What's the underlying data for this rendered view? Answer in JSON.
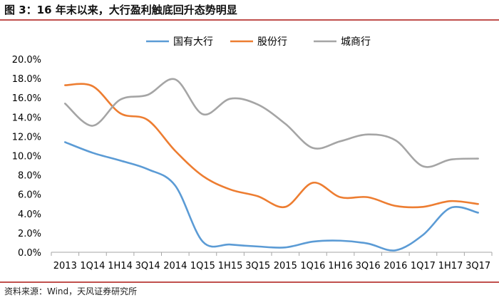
{
  "figure": {
    "title": "图 3：16 年末以来，大行盈利触底回升态势明显",
    "source": "资料来源：Wind，天风证券研究所"
  },
  "colors": {
    "rule": "#c0504d",
    "axis": "#a6a6a6"
  },
  "chart_data": {
    "type": "line",
    "title": "",
    "xlabel": "",
    "ylabel": "",
    "categories": [
      "2013",
      "1Q14",
      "1H14",
      "3Q14",
      "2014",
      "1Q15",
      "1H15",
      "3Q15",
      "2015",
      "1Q16",
      "1H16",
      "3Q16",
      "2016",
      "1Q17",
      "1H17",
      "3Q17"
    ],
    "ylim": [
      0,
      20
    ],
    "y_ticks": [
      0,
      2,
      4,
      6,
      8,
      10,
      12,
      14,
      16,
      18,
      20
    ],
    "y_tick_labels": [
      "0.0%",
      "2.0%",
      "4.0%",
      "6.0%",
      "8.0%",
      "10.0%",
      "12.0%",
      "14.0%",
      "16.0%",
      "18.0%",
      "20.0%"
    ],
    "grid": false,
    "legend_position": "top",
    "series": [
      {
        "name": "国有大行",
        "color": "#5b9bd5",
        "values": [
          11.4,
          10.3,
          9.5,
          8.6,
          6.9,
          1.1,
          0.8,
          0.6,
          0.5,
          1.1,
          1.2,
          0.9,
          0.2,
          1.8,
          4.6,
          4.1
        ]
      },
      {
        "name": "股份行",
        "color": "#ed7d31",
        "values": [
          17.3,
          17.2,
          14.4,
          13.7,
          10.5,
          7.9,
          6.5,
          5.8,
          4.7,
          7.2,
          5.7,
          5.7,
          4.8,
          4.7,
          5.3,
          5.0
        ]
      },
      {
        "name": "城商行",
        "color": "#a5a5a5",
        "values": [
          15.4,
          13.1,
          15.8,
          16.3,
          17.9,
          14.3,
          15.9,
          15.3,
          13.3,
          10.8,
          11.5,
          12.2,
          11.6,
          8.9,
          9.6,
          9.7
        ]
      }
    ]
  }
}
